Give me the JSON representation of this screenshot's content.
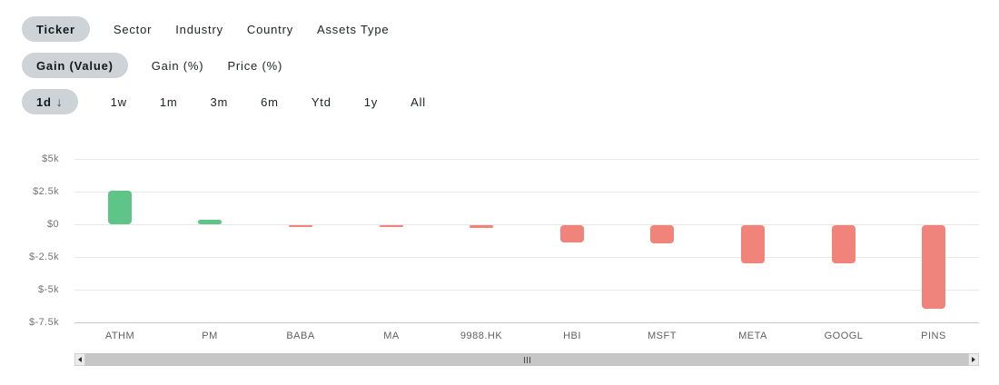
{
  "filters": {
    "group_by": {
      "name": "group-by",
      "items": [
        {
          "label": "Ticker",
          "active": true
        },
        {
          "label": "Sector",
          "active": false
        },
        {
          "label": "Industry",
          "active": false
        },
        {
          "label": "Country",
          "active": false
        },
        {
          "label": "Assets Type",
          "active": false
        }
      ]
    },
    "metric": {
      "name": "metric",
      "items": [
        {
          "label": "Gain (Value)",
          "active": true
        },
        {
          "label": "Gain (%)",
          "active": false
        },
        {
          "label": "Price (%)",
          "active": false
        }
      ]
    },
    "period": {
      "name": "period",
      "items": [
        {
          "label": "1d",
          "active": true,
          "icon": "arrow-down",
          "icon_glyph": "↓"
        },
        {
          "label": "1w",
          "active": false
        },
        {
          "label": "1m",
          "active": false
        },
        {
          "label": "3m",
          "active": false
        },
        {
          "label": "6m",
          "active": false
        },
        {
          "label": "Ytd",
          "active": false
        },
        {
          "label": "1y",
          "active": false
        },
        {
          "label": "All",
          "active": false
        }
      ]
    }
  },
  "chart_data": {
    "type": "bar",
    "title": "",
    "xlabel": "",
    "ylabel": "",
    "categories": [
      "ATHM",
      "PM",
      "BABA",
      "MA",
      "9988.HK",
      "HBI",
      "MSFT",
      "META",
      "GOOGL",
      "PINS"
    ],
    "values": [
      2550,
      350,
      -100,
      -150,
      -200,
      -1300,
      -1400,
      -2950,
      -2900,
      -6400
    ],
    "ylim": [
      -7500,
      5000
    ],
    "yticks": [
      5000,
      2500,
      0,
      -2500,
      -5000,
      -7500
    ],
    "ytick_labels": [
      "$5k",
      "$2.5k",
      "$0",
      "$-2.5k",
      "$-5k",
      "$-7.5k"
    ],
    "grid": true,
    "legend": false,
    "positive_color": "#5ec487",
    "negative_color": "#f0837a"
  },
  "scrollbar": {
    "orientation": "horizontal",
    "grip_marks": 3
  }
}
